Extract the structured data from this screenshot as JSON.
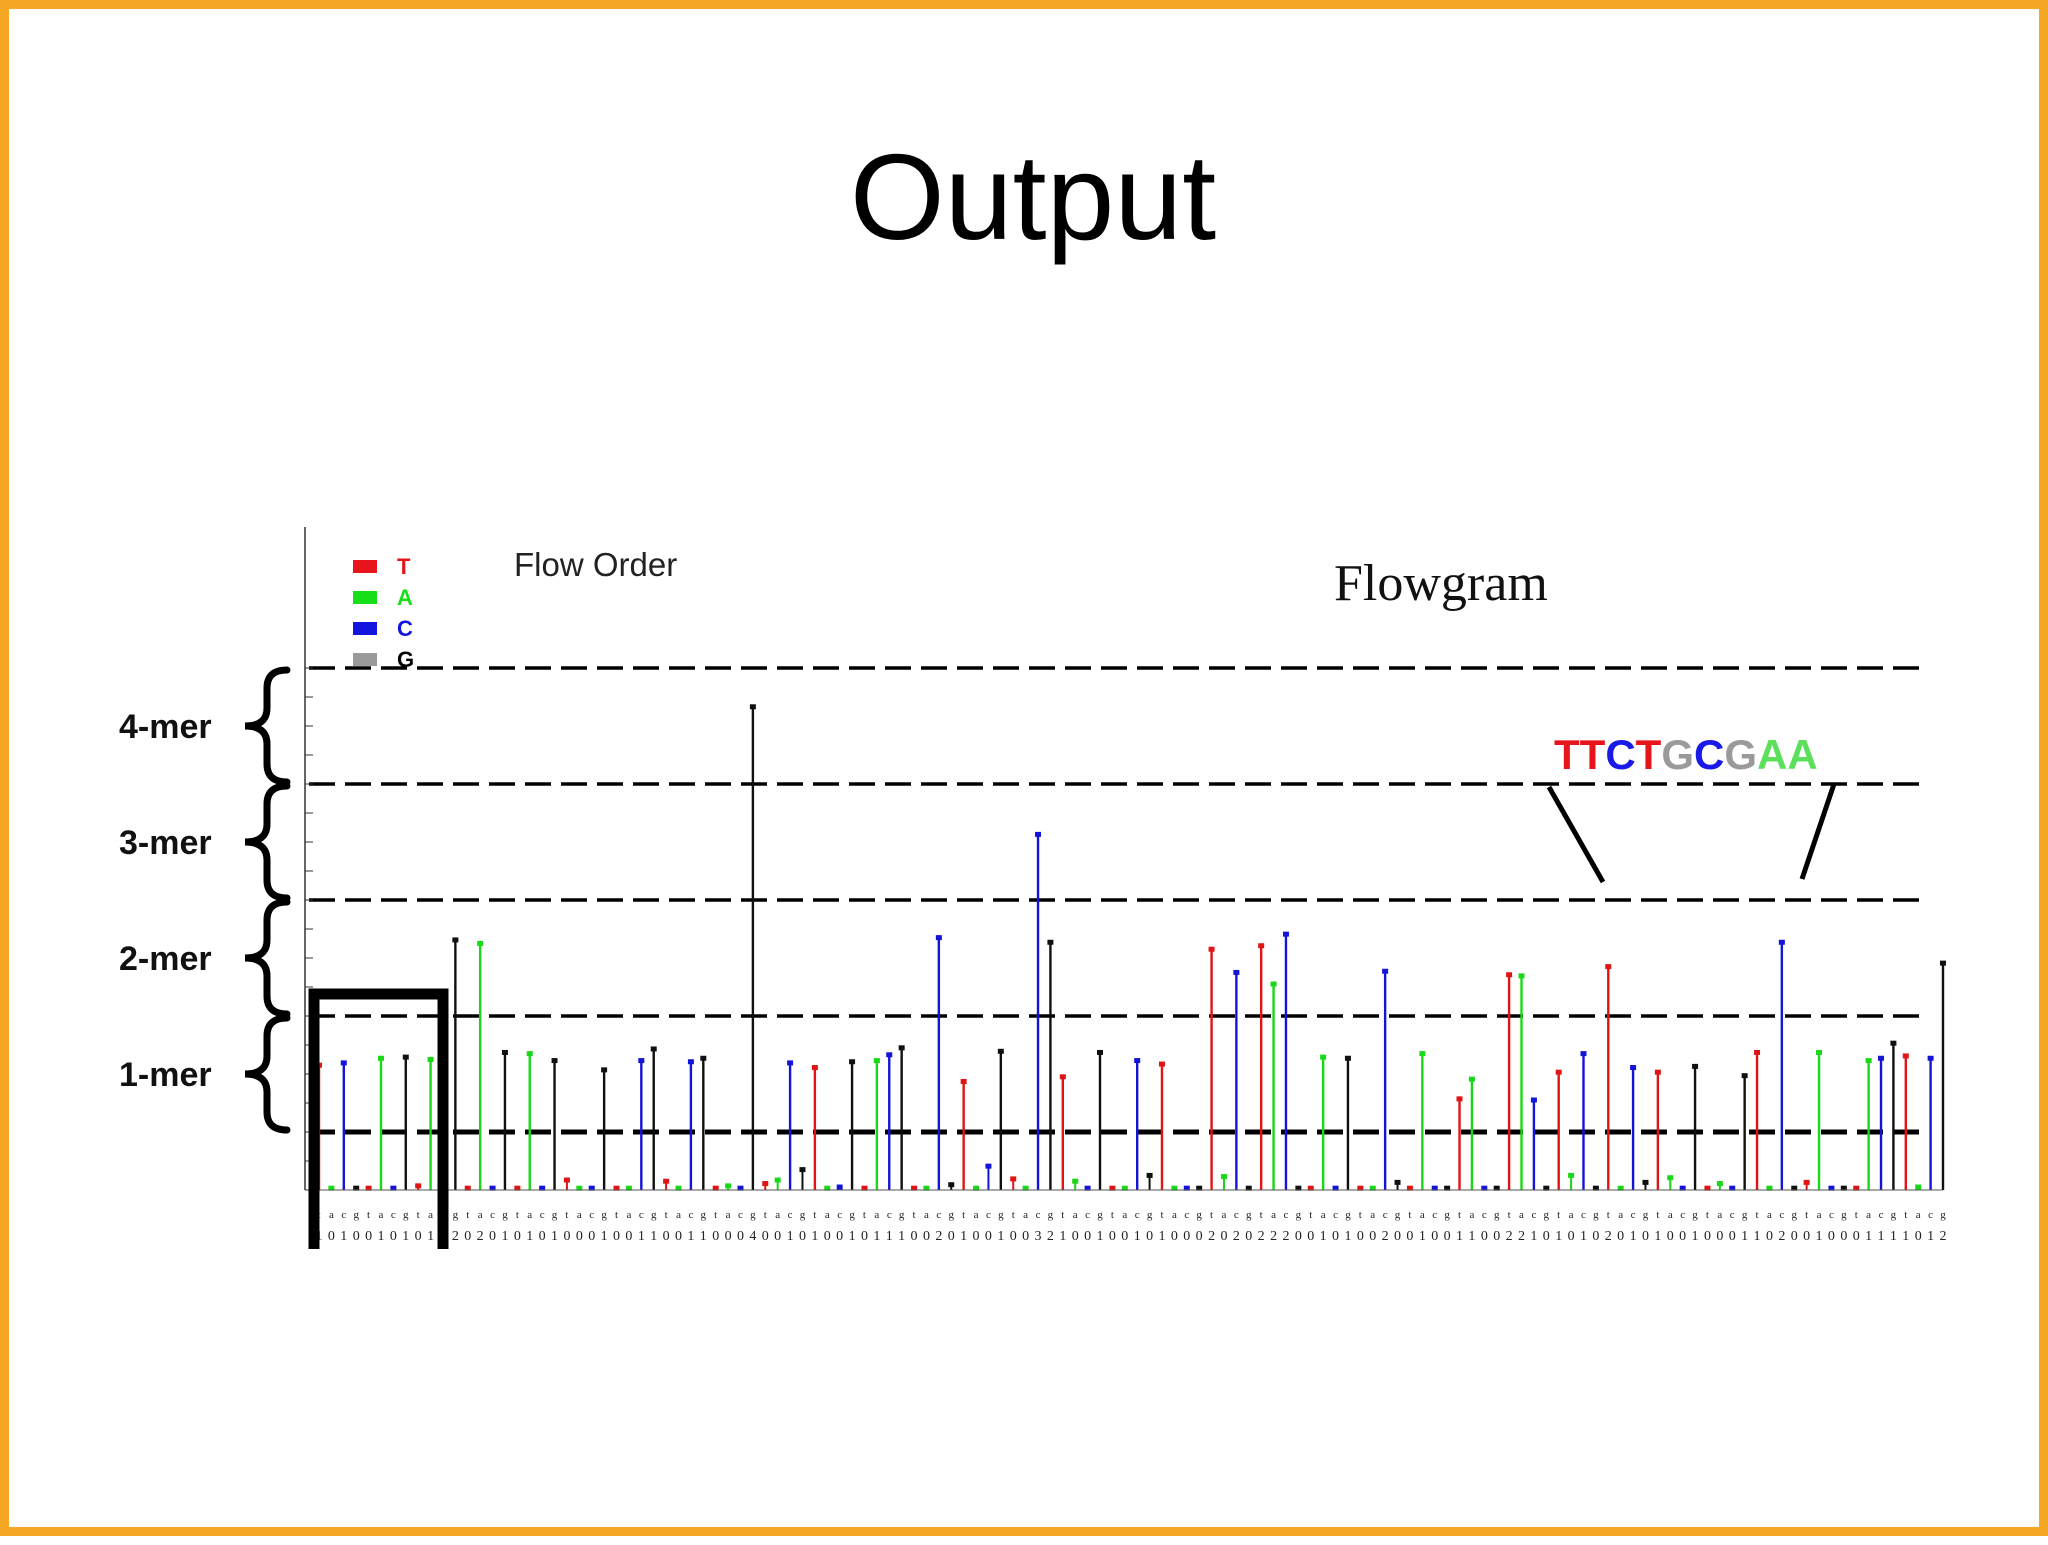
{
  "slide": {
    "title": "Output",
    "border_color": "#f5a623"
  },
  "annotations": {
    "flow_order_label": "Flow Order",
    "chart_title": "Flowgram",
    "sequence": [
      {
        "base": "T",
        "color": "#e8141b"
      },
      {
        "base": "T",
        "color": "#e8141b"
      },
      {
        "base": "C",
        "color": "#1a1ae8"
      },
      {
        "base": "T",
        "color": "#e8141b"
      },
      {
        "base": "G",
        "color": "#9a9a9a"
      },
      {
        "base": "C",
        "color": "#1a1ae8"
      },
      {
        "base": "G",
        "color": "#9a9a9a"
      },
      {
        "base": "A",
        "color": "#5ce05c"
      },
      {
        "base": "A",
        "color": "#5ce05c"
      }
    ]
  },
  "mer_labels": [
    "4-mer",
    "3-mer",
    "2-mer",
    "1-mer"
  ],
  "chart_data": {
    "type": "bar",
    "title": "Flowgram",
    "ylim": [
      0,
      4.5
    ],
    "grid": false,
    "reference_lines": [
      0.5,
      1.5,
      2.5,
      3.5,
      4.5
    ],
    "legend": {
      "position": "top-left",
      "entries": [
        {
          "label": "T",
          "color": "#e8141b",
          "text_color": "#e8141b"
        },
        {
          "label": "A",
          "color": "#18e018",
          "text_color": "#18e018"
        },
        {
          "label": "C",
          "color": "#1414e0",
          "text_color": "#1414e0"
        },
        {
          "label": "G",
          "color": "#9a9a9a",
          "text_color": "#000000"
        }
      ]
    },
    "flow_cycle": [
      "T",
      "A",
      "C",
      "G"
    ],
    "base_colors": {
      "T": "#e01414",
      "A": "#18d818",
      "C": "#1414d8",
      "G": "#101010"
    },
    "values": [
      1.08,
      0.02,
      1.1,
      0.02,
      0.02,
      1.14,
      0.02,
      1.15,
      0.04,
      1.13,
      1.16,
      2.16,
      0.02,
      2.13,
      0.02,
      1.19,
      0.02,
      1.18,
      0.02,
      1.12,
      0.09,
      0.02,
      0.02,
      1.04,
      0.02,
      0.02,
      1.12,
      1.22,
      0.08,
      0.02,
      1.11,
      1.14,
      0.02,
      0.04,
      0.02,
      4.17,
      0.06,
      0.09,
      1.1,
      0.18,
      1.06,
      0.02,
      0.03,
      1.11,
      0.02,
      1.12,
      1.17,
      1.23,
      0.02,
      0.02,
      2.18,
      0.05,
      0.94,
      0.02,
      0.21,
      1.2,
      0.1,
      0.02,
      3.07,
      2.14,
      0.98,
      0.08,
      0.02,
      1.19,
      0.02,
      0.02,
      1.12,
      0.13,
      1.09,
      0.02,
      0.02,
      0.02,
      2.08,
      0.12,
      1.88,
      0.02,
      2.11,
      1.78,
      2.21,
      0.02,
      0.02,
      1.15,
      0.02,
      1.14,
      0.02,
      0.02,
      1.89,
      0.07,
      0.02,
      1.18,
      0.02,
      0.02,
      0.79,
      0.96,
      0.02,
      0.02,
      1.86,
      1.85,
      0.78,
      0.02,
      1.02,
      0.13,
      1.18,
      0.02,
      1.93,
      0.02,
      1.06,
      0.07,
      1.02,
      0.11,
      0.02,
      1.07,
      0.02,
      0.06,
      0.02,
      0.99,
      1.19,
      0.02,
      2.14,
      0.02,
      0.07,
      1.19,
      0.02,
      0.02,
      0.02,
      1.12,
      1.14,
      1.27,
      1.16,
      0.03,
      1.14,
      1.96
    ],
    "tick_labels": [
      "1",
      "0",
      "1",
      "0",
      "0",
      "1",
      "0",
      "1",
      "0",
      "1",
      "1",
      "2",
      "0",
      "2",
      "0",
      "1",
      "0",
      "1",
      "0",
      "1",
      "0",
      "0",
      "0",
      "1",
      "0",
      "0",
      "1",
      "1",
      "0",
      "0",
      "1",
      "1",
      "0",
      "0",
      "0",
      "4",
      "0",
      "0",
      "1",
      "0",
      "1",
      "0",
      "0",
      "1",
      "0",
      "1",
      "1",
      "1",
      "0",
      "0",
      "2",
      "0",
      "1",
      "0",
      "0",
      "1",
      "0",
      "0",
      "3",
      "2",
      "1",
      "0",
      "0",
      "1",
      "0",
      "0",
      "1",
      "0",
      "1",
      "0",
      "0",
      "0",
      "2",
      "0",
      "2",
      "0",
      "2",
      "2",
      "2",
      "0",
      "0",
      "1",
      "0",
      "1",
      "0",
      "0",
      "2",
      "0",
      "0",
      "1",
      "0",
      "0",
      "1",
      "1",
      "0",
      "0",
      "2",
      "2",
      "1",
      "0",
      "1",
      "0",
      "1",
      "0",
      "2",
      "0",
      "1",
      "0",
      "1",
      "0",
      "0",
      "1",
      "0",
      "0",
      "0",
      "1",
      "1",
      "0",
      "2",
      "0",
      "0",
      "1",
      "0",
      "0",
      "0",
      "1",
      "1",
      "1",
      "1",
      "0",
      "1",
      "2"
    ],
    "flow_letters": [
      "t",
      "a",
      "c",
      "g"
    ]
  }
}
